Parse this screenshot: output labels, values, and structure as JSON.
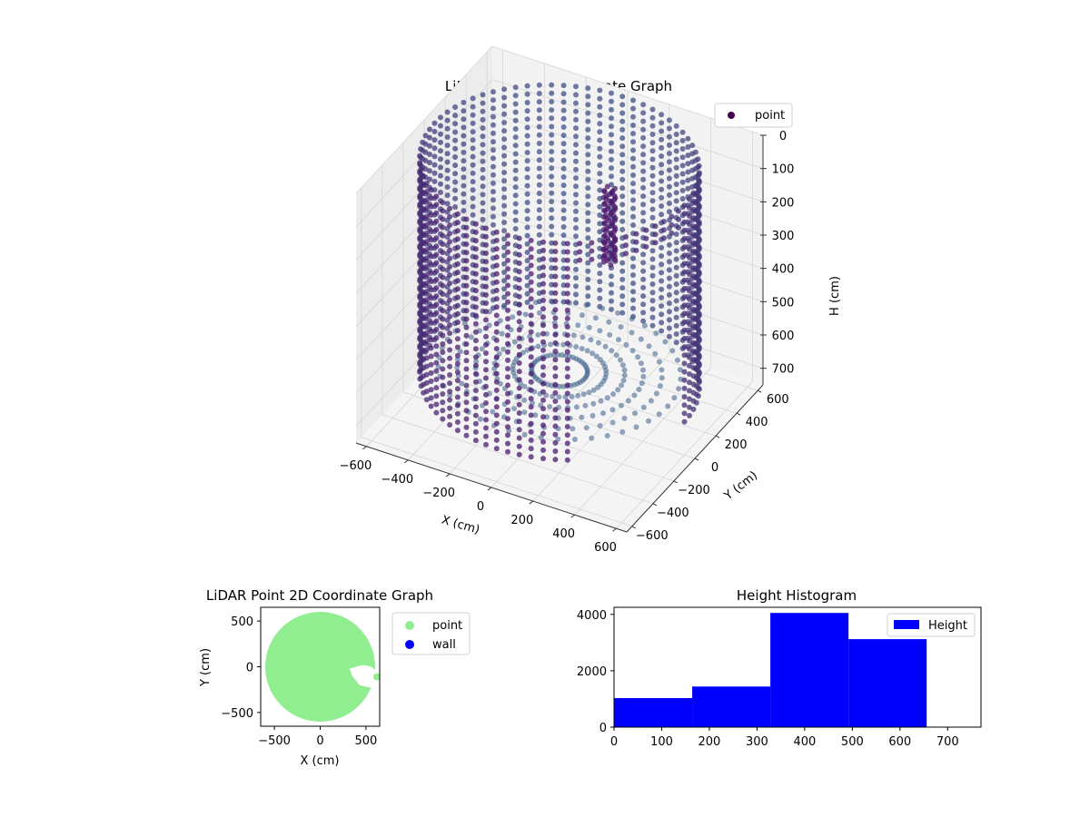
{
  "chart_data": [
    {
      "type": "scatter3d",
      "title": "LiDAR Point 3D Coordinate Graph",
      "xlabel": "X (cm)",
      "ylabel": "Y (cm)",
      "zlabel": "H (cm)",
      "xlim": [
        -650,
        650
      ],
      "ylim": [
        -650,
        650
      ],
      "zlim": [
        0,
        750
      ],
      "z_inverted": true,
      "xticks": [
        -600,
        -400,
        -200,
        0,
        200,
        400,
        600
      ],
      "yticks": [
        -600,
        -400,
        -200,
        0,
        200,
        400,
        600
      ],
      "zticks": [
        0,
        100,
        200,
        300,
        400,
        500,
        600,
        700
      ],
      "legend": [
        "point"
      ],
      "legend_position": "upper right",
      "series_color": "#440154",
      "colormap_low": "#3b6b8f",
      "colormap_high": "#4a1a6e",
      "structure": {
        "cylinder_radius_cm": 600,
        "height_range_cm": [
          0,
          650
        ],
        "opening_angle_deg": [
          -60,
          0
        ],
        "object_center_cm": [
          180,
          120
        ],
        "object_height_range_cm": [
          80,
          300
        ]
      }
    },
    {
      "type": "scatter",
      "title": "LiDAR Point 2D Coordinate Graph",
      "xlabel": "X (cm)",
      "ylabel": "Y (cm)",
      "xlim": [
        -650,
        650
      ],
      "ylim": [
        -650,
        650
      ],
      "xticks": [
        -500,
        0,
        500
      ],
      "yticks": [
        -500,
        0,
        500
      ],
      "series": [
        {
          "name": "point",
          "color": "#90ee90"
        },
        {
          "name": "wall",
          "color": "#0000ff"
        }
      ],
      "legend_position": "outside right",
      "disk_radius_cm": 600,
      "gap_polygon_cm": [
        [
          320,
          -20
        ],
        [
          470,
          20
        ],
        [
          560,
          0
        ],
        [
          620,
          -60
        ],
        [
          560,
          -230
        ],
        [
          430,
          -200
        ],
        [
          350,
          -100
        ]
      ]
    },
    {
      "type": "histogram",
      "title": "Height Histogram",
      "bins": [
        {
          "start": 0,
          "end": 164,
          "count": 1030
        },
        {
          "start": 164,
          "end": 328,
          "count": 1440
        },
        {
          "start": 328,
          "end": 492,
          "count": 4050
        },
        {
          "start": 492,
          "end": 656,
          "count": 3120
        }
      ],
      "xlim": [
        0,
        770
      ],
      "ylim": [
        0,
        4250
      ],
      "xticks": [
        0,
        100,
        200,
        300,
        400,
        500,
        600,
        700
      ],
      "yticks": [
        0,
        2000,
        4000
      ],
      "legend": [
        "Height"
      ],
      "legend_position": "upper right",
      "color": "#0000ff"
    }
  ]
}
